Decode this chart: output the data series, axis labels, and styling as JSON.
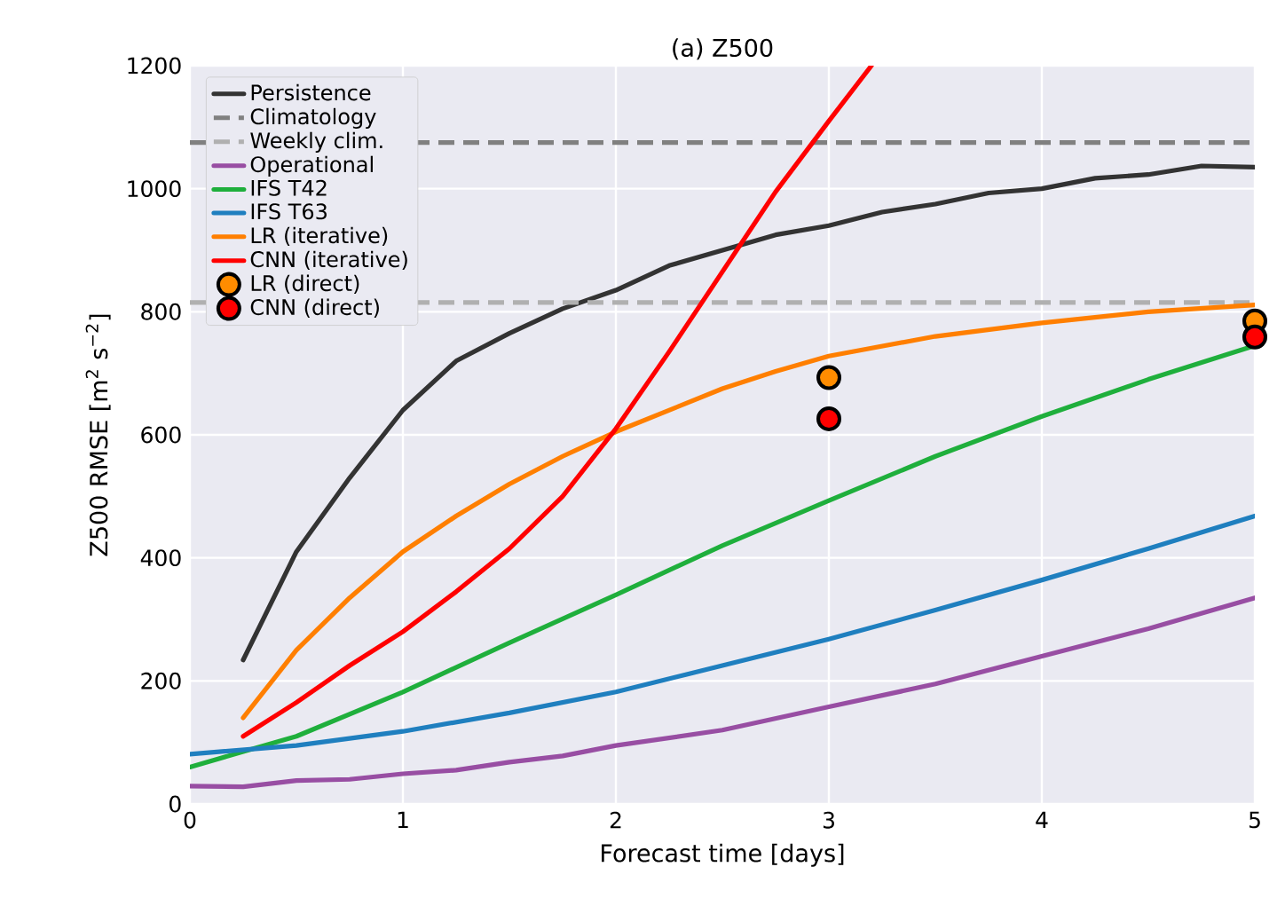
{
  "chart_data": {
    "type": "line",
    "title": "(a) Z500",
    "xlabel": "Forecast time [days]",
    "ylabel": "Z500 RMSE [m$^{2}$ s$^{−2}$]",
    "xlim": [
      0,
      5
    ],
    "xticks": [
      0,
      1,
      2,
      3,
      4,
      5
    ],
    "ylim": [
      0,
      1200
    ],
    "yticks": [
      0,
      200,
      400,
      600,
      800,
      1000,
      1200
    ],
    "grid": true,
    "legend": "top left",
    "line_style": "solid",
    "ref_lines": [
      {
        "axis": "y",
        "value": 1075,
        "label": "Climatology",
        "color": "#808080",
        "line_style": "dashed"
      },
      {
        "axis": "y",
        "value": 815,
        "label": "Weekly clim.",
        "color": "#b0b0b0",
        "line_style": "dashed"
      }
    ],
    "series": [
      {
        "name": "Persistence",
        "color": "#333333",
        "x": [
          0.25,
          0.5,
          0.75,
          1,
          1.25,
          1.5,
          1.75,
          2,
          2.25,
          2.5,
          2.75,
          3,
          3.25,
          3.5,
          3.75,
          4,
          4.25,
          4.5,
          4.75,
          5
        ],
        "values": [
          234,
          410,
          530,
          640,
          720,
          765,
          805,
          835,
          875,
          900,
          925,
          940,
          962,
          975,
          993,
          1000,
          1017,
          1023,
          1037,
          1035
        ]
      },
      {
        "name": "Operational",
        "color": "#984ea3",
        "x": [
          0,
          0.25,
          0.5,
          0.75,
          1,
          1.25,
          1.5,
          1.75,
          2,
          2.5,
          3,
          3.5,
          4,
          4.5,
          5
        ],
        "values": [
          29,
          28,
          38,
          40,
          49,
          55,
          68,
          78,
          95,
          120,
          158,
          195,
          240,
          285,
          335
        ]
      },
      {
        "name": "IFS T42",
        "color": "#1faf3c",
        "x": [
          0,
          0.25,
          0.5,
          1,
          1.5,
          2,
          2.5,
          3,
          3.5,
          4,
          4.5,
          5
        ],
        "values": [
          60,
          85,
          110,
          182,
          262,
          340,
          420,
          493,
          565,
          630,
          690,
          745
        ]
      },
      {
        "name": "IFS T63",
        "color": "#1f7fbf",
        "x": [
          0,
          0.5,
          1,
          1.5,
          2,
          2.5,
          3,
          3.5,
          4,
          4.5,
          5
        ],
        "values": [
          81,
          95,
          118,
          148,
          182,
          225,
          268,
          315,
          364,
          415,
          468
        ]
      },
      {
        "name": "LR (iterative)",
        "color": "#ff7f00",
        "x": [
          0.25,
          0.5,
          0.75,
          1,
          1.25,
          1.5,
          1.75,
          2,
          2.25,
          2.5,
          2.75,
          3,
          3.5,
          4,
          4.5,
          5
        ],
        "values": [
          140,
          250,
          335,
          410,
          468,
          520,
          565,
          605,
          640,
          675,
          703,
          728,
          760,
          782,
          800,
          811
        ]
      },
      {
        "name": "CNN (iterative)",
        "color": "#ff0000",
        "x": [
          0.25,
          0.5,
          0.75,
          1,
          1.25,
          1.5,
          1.75,
          2,
          2.25,
          2.5,
          2.75,
          3,
          3.2
        ],
        "values": [
          110,
          165,
          225,
          280,
          345,
          415,
          500,
          610,
          735,
          865,
          995,
          1110,
          1200
        ]
      },
      {
        "name": "LR (direct)",
        "color": "#ff8c00",
        "type": "scatter",
        "marker": "circle",
        "x": [
          3,
          5
        ],
        "values": [
          693,
          785
        ]
      },
      {
        "name": "CNN (direct)",
        "color": "#ff0000",
        "type": "scatter",
        "marker": "circle",
        "x": [
          3,
          5
        ],
        "values": [
          626,
          759
        ]
      }
    ]
  }
}
